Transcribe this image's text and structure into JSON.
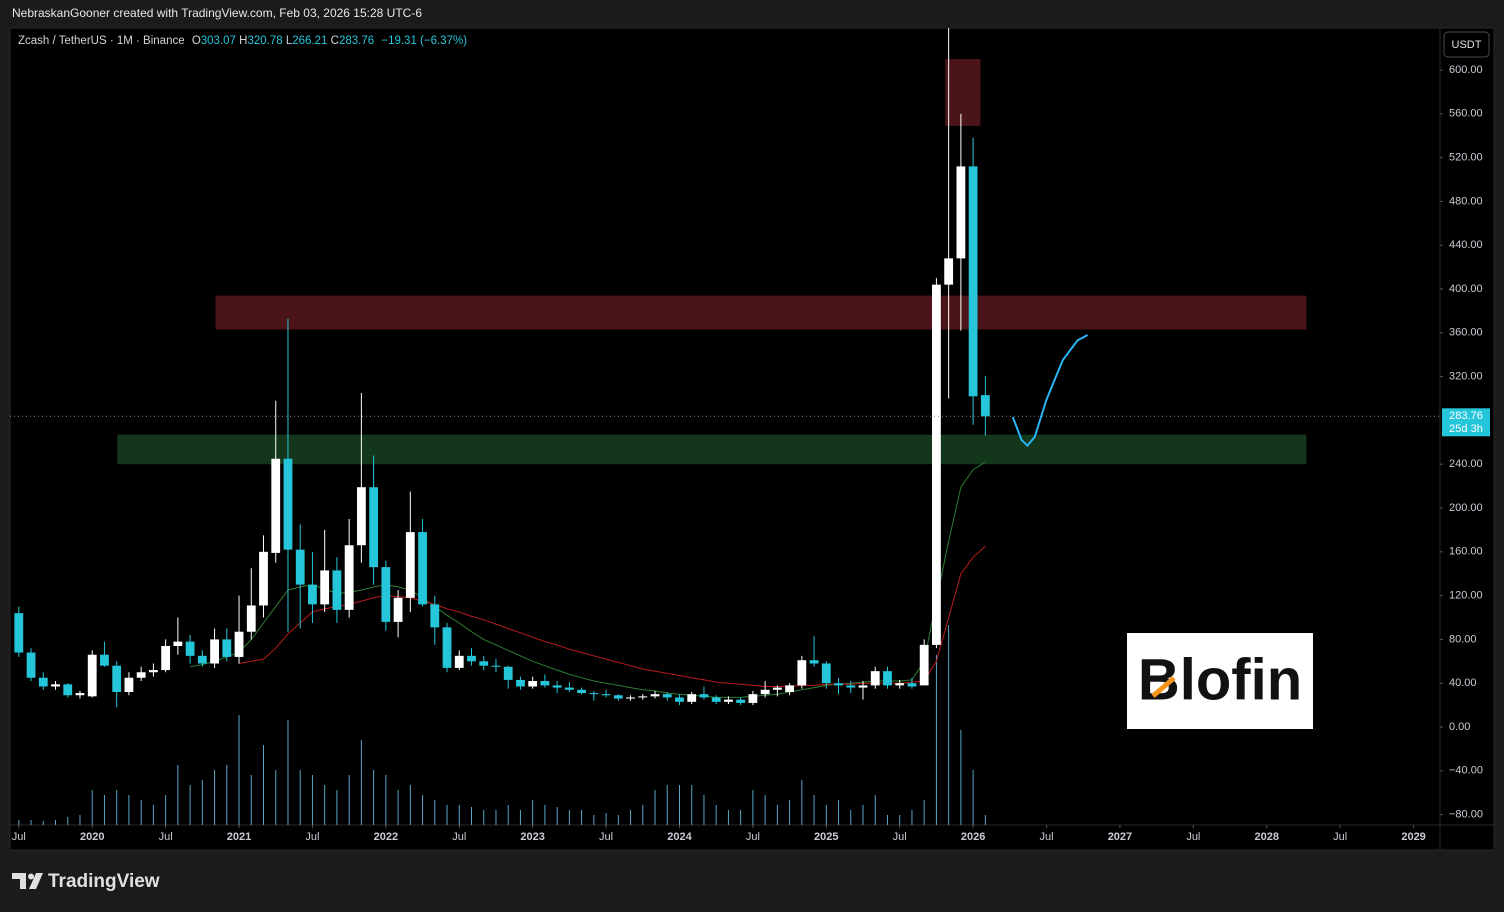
{
  "header": {
    "attribution": "NebraskanGooner created with TradingView.com, Feb 03, 2026 15:28 UTC-6"
  },
  "chart_data": {
    "type": "candlestick",
    "title": "Zcash / TetherUS · 1M · Binance",
    "ohlc_letters": [
      "O",
      "H",
      "L",
      "C"
    ],
    "change": "−19.31 (−6.37%)",
    "currency": "USDT",
    "last_price_countdown": "25d 3h",
    "x": [
      "2019-07",
      "2019-08",
      "2019-09",
      "2019-10",
      "2019-11",
      "2019-12",
      "2020-01",
      "2020-02",
      "2020-03",
      "2020-04",
      "2020-05",
      "2020-06",
      "2020-07",
      "2020-08",
      "2020-09",
      "2020-10",
      "2020-11",
      "2020-12",
      "2021-01",
      "2021-02",
      "2021-03",
      "2021-04",
      "2021-05",
      "2021-06",
      "2021-07",
      "2021-08",
      "2021-09",
      "2021-10",
      "2021-11",
      "2021-12",
      "2022-01",
      "2022-02",
      "2022-03",
      "2022-04",
      "2022-05",
      "2022-06",
      "2022-07",
      "2022-08",
      "2022-09",
      "2022-10",
      "2022-11",
      "2022-12",
      "2023-01",
      "2023-02",
      "2023-03",
      "2023-04",
      "2023-05",
      "2023-06",
      "2023-07",
      "2023-08",
      "2023-09",
      "2023-10",
      "2023-11",
      "2023-12",
      "2024-01",
      "2024-02",
      "2024-03",
      "2024-04",
      "2024-05",
      "2024-06",
      "2024-07",
      "2024-08",
      "2024-09",
      "2024-10",
      "2024-11",
      "2024-12",
      "2025-01",
      "2025-02",
      "2025-03",
      "2025-04",
      "2025-05",
      "2025-06",
      "2025-07",
      "2025-08",
      "2025-09",
      "2025-10",
      "2025-11",
      "2025-12",
      "2026-01",
      "2026-02"
    ],
    "open": [
      104,
      68,
      45,
      37,
      39,
      29,
      28,
      66,
      56,
      32,
      45,
      50,
      52,
      74,
      78,
      65,
      58,
      80,
      64,
      87,
      111,
      159,
      245,
      162,
      130,
      112,
      143,
      107,
      166,
      219,
      146,
      96,
      118,
      178,
      112,
      91,
      54,
      65,
      60,
      56,
      55,
      43,
      37,
      42,
      38,
      36,
      34,
      31,
      30,
      29,
      26,
      27,
      28,
      30,
      27,
      23,
      30,
      27,
      23,
      25,
      22,
      30,
      34,
      32,
      38,
      61,
      58,
      40,
      38,
      36,
      38,
      51,
      38,
      40,
      38,
      75,
      404,
      428,
      512,
      303.07
    ],
    "high": [
      110,
      72,
      50,
      42,
      40,
      33,
      70,
      78,
      60,
      50,
      55,
      58,
      80,
      100,
      84,
      70,
      90,
      90,
      120,
      145,
      175,
      298,
      373,
      185,
      160,
      180,
      155,
      190,
      305,
      248,
      152,
      125,
      215,
      190,
      120,
      95,
      70,
      72,
      65,
      62,
      56,
      46,
      46,
      48,
      42,
      41,
      36,
      33,
      34,
      30,
      29,
      30,
      33,
      32,
      30,
      32,
      37,
      29,
      28,
      27,
      33,
      42,
      38,
      40,
      65,
      83,
      60,
      45,
      42,
      42,
      55,
      55,
      43,
      45,
      80,
      410,
      700,
      560,
      538,
      320.78
    ],
    "low": [
      64,
      42,
      34,
      34,
      27,
      26,
      27,
      55,
      18,
      29,
      42,
      46,
      50,
      66,
      58,
      55,
      54,
      60,
      58,
      80,
      100,
      150,
      87,
      90,
      95,
      105,
      95,
      100,
      150,
      130,
      88,
      82,
      105,
      110,
      75,
      50,
      52,
      56,
      52,
      50,
      35,
      34,
      35,
      36,
      31,
      32,
      30,
      24,
      27,
      24,
      24,
      25,
      26,
      24,
      20,
      21,
      25,
      21,
      21,
      20,
      20,
      27,
      28,
      29,
      35,
      55,
      35,
      30,
      31,
      25,
      35,
      35,
      35,
      35,
      38,
      72,
      300,
      362,
      276,
      266.21
    ],
    "close": [
      68,
      45,
      37,
      39,
      29,
      31,
      66,
      56,
      32,
      45,
      50,
      52,
      74,
      78,
      65,
      58,
      80,
      64,
      87,
      111,
      160,
      245,
      162,
      130,
      112,
      143,
      107,
      166,
      219,
      146,
      96,
      118,
      178,
      112,
      91,
      54,
      65,
      60,
      56,
      55,
      43,
      37,
      42,
      38,
      36,
      34,
      31,
      30,
      29,
      26,
      27,
      28,
      30,
      27,
      23,
      30,
      27,
      23,
      25,
      22,
      30,
      34,
      36,
      38,
      61,
      58,
      40,
      38,
      36,
      38,
      51,
      38,
      40,
      37,
      75,
      404,
      428,
      512,
      302,
      283.76
    ],
    "up_color": "#ffffff",
    "down_color": "#26c6da",
    "volume": {
      "color": "#5aa6c8",
      "values": [
        5,
        5,
        4,
        5,
        8,
        10,
        35,
        30,
        35,
        30,
        25,
        20,
        30,
        60,
        40,
        45,
        55,
        60,
        110,
        50,
        80,
        55,
        105,
        55,
        50,
        40,
        35,
        50,
        85,
        55,
        50,
        35,
        40,
        30,
        25,
        20,
        20,
        18,
        15,
        15,
        20,
        15,
        25,
        20,
        18,
        15,
        15,
        10,
        12,
        10,
        15,
        20,
        35,
        40,
        40,
        40,
        30,
        20,
        15,
        15,
        35,
        30,
        20,
        25,
        45,
        30,
        20,
        25,
        15,
        20,
        30,
        10,
        10,
        15,
        25,
        170,
        200,
        95,
        55,
        10
      ]
    },
    "moving_averages": [
      {
        "color": "#2e7d32",
        "values": [
          null,
          null,
          null,
          null,
          null,
          null,
          null,
          null,
          null,
          null,
          null,
          null,
          null,
          null,
          55,
          57,
          60,
          64,
          68,
          80,
          95,
          110,
          125,
          128,
          130,
          126,
          122,
          123,
          125,
          128,
          130,
          128,
          125,
          118,
          110,
          102,
          95,
          87,
          80,
          75,
          70,
          65,
          60,
          56,
          52,
          48,
          45,
          42,
          40,
          38,
          36,
          34,
          33,
          31,
          30,
          29,
          28,
          27,
          27,
          27,
          28,
          29,
          30,
          32,
          34,
          36,
          38,
          39,
          40,
          41,
          42,
          42,
          42,
          43,
          60,
          116,
          170,
          219,
          235,
          242
        ]
      },
      {
        "color": "#b71c1c",
        "values": [
          null,
          null,
          null,
          null,
          null,
          null,
          null,
          null,
          null,
          null,
          null,
          null,
          null,
          null,
          null,
          null,
          null,
          null,
          58,
          60,
          62,
          72,
          85,
          95,
          105,
          108,
          110,
          112,
          115,
          118,
          120,
          119,
          118,
          115,
          112,
          108,
          105,
          101,
          98,
          94,
          90,
          86,
          82,
          78,
          75,
          71,
          68,
          65,
          62,
          59,
          56,
          53,
          51,
          49,
          47,
          45,
          43,
          41,
          40,
          39,
          38,
          37,
          37,
          37,
          38,
          38,
          39,
          39,
          39,
          40,
          40,
          40,
          40,
          41,
          42,
          60,
          100,
          140,
          155,
          165
        ]
      }
    ],
    "zones": [
      {
        "x": [
          2025.81,
          2026.05
        ],
        "y": [
          549,
          610
        ],
        "color": "#4a1418"
      },
      {
        "x": [
          2020.84,
          2028.27
        ],
        "y": [
          363,
          394
        ],
        "color": "#4a1418"
      },
      {
        "x": [
          2020.17,
          2028.27
        ],
        "y": [
          240,
          267
        ],
        "color": "#14361a"
      }
    ],
    "projection": {
      "color": "#29b6f6",
      "x": [
        2026.27,
        2026.33,
        2026.37,
        2026.42,
        2026.5,
        2026.61,
        2026.71,
        2026.78
      ],
      "y": [
        283,
        262,
        257,
        265,
        299,
        335,
        353,
        358
      ]
    },
    "xlim": [
      2019.44,
      2029.18
    ],
    "xticks": [
      {
        "value": 2019.5,
        "label": "Jul"
      },
      2020,
      {
        "value": 2020.5,
        "label": "Jul"
      },
      2021,
      {
        "value": 2021.5,
        "label": "Jul"
      },
      2022,
      {
        "value": 2022.5,
        "label": "Jul"
      },
      2023,
      {
        "value": 2023.5,
        "label": "Jul"
      },
      2024,
      {
        "value": 2024.5,
        "label": "Jul"
      },
      2025,
      {
        "value": 2025.5,
        "label": "Jul"
      },
      2026,
      {
        "value": 2026.5,
        "label": "Jul"
      },
      2027,
      {
        "value": 2027.5,
        "label": "Jul"
      },
      2028,
      {
        "value": 2028.5,
        "label": "Jul"
      },
      2029
    ],
    "ylim": [
      -89.5,
      638.4
    ],
    "yticks": [
      {
        "value": -80,
        "label": "−80.00"
      },
      {
        "value": -40,
        "label": "−40.00"
      },
      {
        "value": 0,
        "label": "0.00"
      },
      {
        "value": 40,
        "label": "40.00"
      },
      {
        "value": 80,
        "label": "80.00"
      },
      {
        "value": 120,
        "label": "120.00"
      },
      {
        "value": 160,
        "label": "160.00"
      },
      {
        "value": 200,
        "label": "200.00"
      },
      {
        "value": 240,
        "label": "240.00"
      },
      {
        "value": 320,
        "label": "320.00"
      },
      {
        "value": 360,
        "label": "360.00"
      },
      {
        "value": 400,
        "label": "400.00"
      },
      {
        "value": 440,
        "label": "440.00"
      },
      {
        "value": 480,
        "label": "480.00"
      },
      {
        "value": 520,
        "label": "520.00"
      },
      {
        "value": 560,
        "label": "560.00"
      },
      {
        "value": 600,
        "label": "600.00"
      }
    ],
    "grid": false
  },
  "watermark": {
    "text": "Blofin"
  },
  "footer": {
    "brand": "TradingView"
  }
}
